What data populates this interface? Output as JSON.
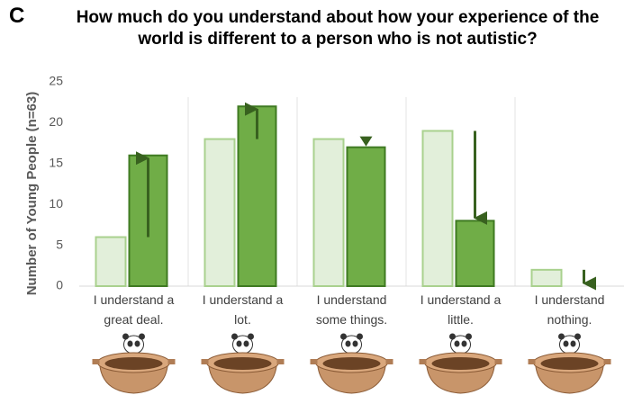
{
  "chart_data": {
    "type": "bar",
    "panel_label": "C",
    "title": "How much do you understand about how your experience of the world is different to a person who is not autistic?",
    "y_label": "Number of Young People (n=63)",
    "categories": [
      "I understand a great deal.",
      "I understand a lot.",
      "I understand some things.",
      "I understand a little.",
      "I understand nothing."
    ],
    "series": [
      {
        "color": "#e2efda",
        "values": [
          6,
          18,
          18,
          19,
          2
        ]
      },
      {
        "color": "#70ad47",
        "values": [
          16,
          22,
          17,
          8,
          0
        ]
      }
    ],
    "ylim": [
      0,
      25
    ],
    "yticks": [
      0,
      5,
      10,
      15,
      20,
      25
    ],
    "grid": false
  }
}
